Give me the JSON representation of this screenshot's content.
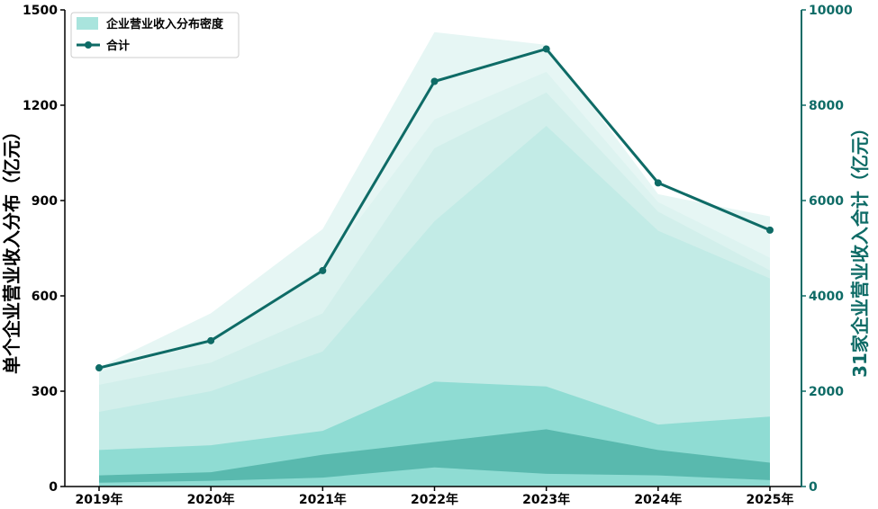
{
  "chart_data": {
    "type": "area",
    "x_categories": [
      "2019年",
      "2020年",
      "2021年",
      "2022年",
      "2023年",
      "2024年",
      "2025年"
    ],
    "ylabel_left": "单个企业营业收入分布（亿元）",
    "ylabel_right": "31家企业营业收入合计（亿元）",
    "ylim_left": [
      0,
      1500
    ],
    "ylim_right": [
      0,
      10000
    ],
    "yticks_left": [
      "0",
      "300",
      "600",
      "900",
      "1200",
      "1500"
    ],
    "yticks_right": [
      "0",
      "2000",
      "4000",
      "6000",
      "8000",
      "10000"
    ],
    "grid": false,
    "legend_position": "top-left",
    "legend": {
      "band_label": "企业营业收入分布密度",
      "line_label": "合计"
    },
    "density_bands": [
      {
        "upper": [
          375,
          545,
          810,
          1430,
          1390,
          920,
          850
        ],
        "lower": [
          0,
          0,
          0,
          0,
          0,
          0,
          0
        ]
      },
      {
        "upper": [
          360,
          455,
          690,
          1155,
          1305,
          895,
          720
        ],
        "lower": [
          0,
          0,
          0,
          0,
          0,
          0,
          0
        ]
      },
      {
        "upper": [
          320,
          390,
          545,
          1065,
          1240,
          865,
          680
        ],
        "lower": [
          0,
          0,
          0,
          0,
          0,
          0,
          0
        ]
      },
      {
        "upper": [
          235,
          300,
          425,
          835,
          1135,
          805,
          655
        ],
        "lower": [
          0,
          0,
          0,
          0,
          0,
          0,
          0
        ]
      },
      {
        "upper": [
          115,
          130,
          175,
          330,
          315,
          195,
          220
        ],
        "lower": [
          0,
          0,
          0,
          0,
          0,
          0,
          0
        ]
      },
      {
        "upper": [
          35,
          45,
          100,
          140,
          180,
          115,
          75
        ],
        "lower": [
          12,
          18,
          28,
          60,
          40,
          35,
          20
        ]
      }
    ],
    "series": [
      {
        "name": "合计",
        "values": [
          2490,
          3060,
          4530,
          8500,
          9180,
          6370,
          5380
        ],
        "axis": "right"
      }
    ],
    "colors": {
      "bands": [
        "#e6f6f4",
        "#ddf3f0",
        "#d2efeb",
        "#c2ebe6",
        "#8fdcd3",
        "#59b9ae"
      ],
      "line": "#0e6b66",
      "axis": "#000000",
      "right_axis": "#0e6b66",
      "legend_patch": "#a9e4dd"
    }
  }
}
